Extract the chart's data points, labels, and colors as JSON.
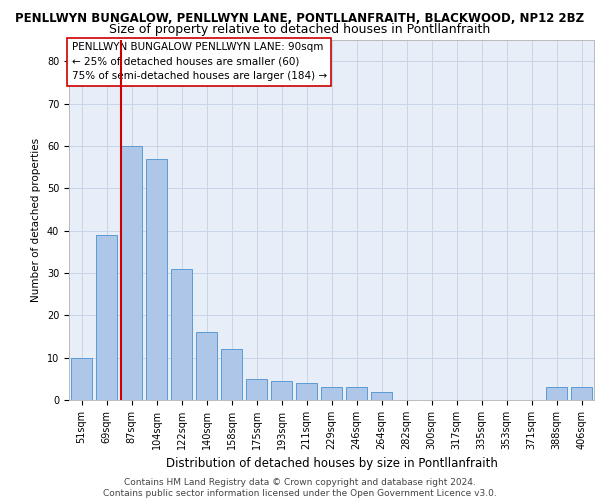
{
  "title1": "PENLLWYN BUNGALOW, PENLLWYN LANE, PONTLLANFRAITH, BLACKWOOD, NP12 2BZ",
  "title2": "Size of property relative to detached houses in Pontllanfraith",
  "xlabel": "Distribution of detached houses by size in Pontllanfraith",
  "ylabel": "Number of detached properties",
  "categories": [
    "51sqm",
    "69sqm",
    "87sqm",
    "104sqm",
    "122sqm",
    "140sqm",
    "158sqm",
    "175sqm",
    "193sqm",
    "211sqm",
    "229sqm",
    "246sqm",
    "264sqm",
    "282sqm",
    "300sqm",
    "317sqm",
    "335sqm",
    "353sqm",
    "371sqm",
    "388sqm",
    "406sqm"
  ],
  "values": [
    10,
    39,
    60,
    57,
    31,
    16,
    12,
    5,
    4.5,
    4,
    3,
    3,
    2,
    0,
    0,
    0,
    0,
    0,
    0,
    3,
    3
  ],
  "bar_color": "#aec6e8",
  "bar_edge_color": "#5b9bd5",
  "red_line_index": 2,
  "red_line_color": "#cc0000",
  "annotation_box_color": "#ffffff",
  "annotation_box_edge": "#cc0000",
  "annotation_line1": "PENLLWYN BUNGALOW PENLLWYN LANE: 90sqm",
  "annotation_line2": "← 25% of detached houses are smaller (60)",
  "annotation_line3": "75% of semi-detached houses are larger (184) →",
  "ylim": [
    0,
    85
  ],
  "yticks": [
    0,
    10,
    20,
    30,
    40,
    50,
    60,
    70,
    80
  ],
  "background_color": "#ffffff",
  "plot_bg_color": "#e8eef8",
  "grid_color": "#c8d4e8",
  "title1_fontsize": 8.5,
  "title2_fontsize": 9,
  "xlabel_fontsize": 8.5,
  "ylabel_fontsize": 7.5,
  "tick_fontsize": 7,
  "annotation_fontsize": 7.5,
  "footer1": "Contains HM Land Registry data © Crown copyright and database right 2024.",
  "footer2": "Contains public sector information licensed under the Open Government Licence v3.0.",
  "footer_fontsize": 6.5
}
